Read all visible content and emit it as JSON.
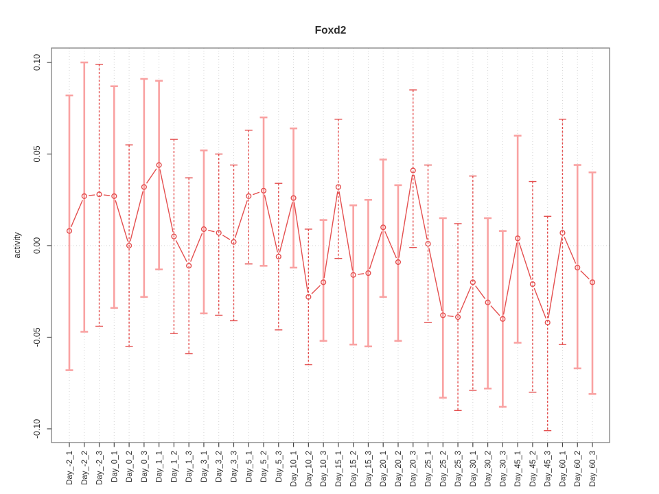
{
  "chart_data": {
    "type": "line",
    "subtype": "points-with-error-bars",
    "title": "Foxd2",
    "ylabel": "activity",
    "xlabel": "",
    "ylim": [
      -0.1078,
      0.1078
    ],
    "yticks": [
      "0.10",
      "0.05",
      "0.00",
      "-0.05",
      "-0.10"
    ],
    "ytick_values": [
      0.1,
      0.05,
      0.0,
      -0.05,
      -0.1
    ],
    "grid": "vertical dotted gridline per category, dotted horizontal line at y=0",
    "legend": "none",
    "categories": [
      "Day_-2_1",
      "Day_-2_2",
      "Day_-2_3",
      "Day_0_1",
      "Day_0_2",
      "Day_0_3",
      "Day_1_1",
      "Day_1_2",
      "Day_1_3",
      "Day_3_1",
      "Day_3_2",
      "Day_3_3",
      "Day_5_1",
      "Day_5_2",
      "Day_5_3",
      "Day_10_1",
      "Day_10_2",
      "Day_10_3",
      "Day_15_1",
      "Day_15_2",
      "Day_15_3",
      "Day_20_1",
      "Day_20_2",
      "Day_20_3",
      "Day_25_1",
      "Day_25_2",
      "Day_25_3",
      "Day_30_1",
      "Day_30_2",
      "Day_30_3",
      "Day_45_1",
      "Day_45_2",
      "Day_45_3",
      "Day_60_1",
      "Day_60_2",
      "Day_60_3"
    ],
    "series": [
      {
        "name": "activity",
        "values": [
          0.008,
          0.027,
          0.028,
          0.027,
          0.0,
          0.032,
          0.044,
          0.005,
          -0.011,
          0.009,
          0.007,
          0.002,
          0.027,
          0.03,
          -0.006,
          0.026,
          -0.028,
          -0.02,
          0.032,
          -0.016,
          -0.015,
          0.01,
          -0.009,
          0.041,
          0.001,
          -0.038,
          -0.039,
          -0.02,
          -0.031,
          -0.04,
          0.004,
          -0.021,
          -0.042,
          0.007,
          -0.012,
          -0.02
        ],
        "err_high": [
          0.082,
          0.1,
          0.099,
          0.087,
          0.055,
          0.091,
          0.09,
          0.058,
          0.037,
          0.052,
          0.05,
          0.044,
          0.063,
          0.07,
          0.034,
          0.064,
          0.009,
          0.014,
          0.069,
          0.022,
          0.025,
          0.047,
          0.033,
          0.085,
          0.044,
          0.015,
          0.012,
          0.038,
          0.015,
          0.008,
          0.06,
          0.035,
          0.016,
          0.069,
          0.044,
          0.04
        ],
        "err_low": [
          -0.068,
          -0.047,
          -0.044,
          -0.034,
          -0.055,
          -0.028,
          -0.013,
          -0.048,
          -0.059,
          -0.037,
          -0.038,
          -0.041,
          -0.01,
          -0.011,
          -0.046,
          -0.012,
          -0.065,
          -0.052,
          -0.007,
          -0.054,
          -0.055,
          -0.028,
          -0.052,
          -0.001,
          -0.042,
          -0.083,
          -0.09,
          -0.079,
          -0.078,
          -0.088,
          -0.053,
          -0.08,
          -0.101,
          -0.054,
          -0.067,
          -0.081
        ],
        "bar_styles": [
          "solid",
          "solid",
          "dashed",
          "solid",
          "dashed",
          "solid",
          "solid",
          "dashed",
          "dashed",
          "solid",
          "dashed",
          "dashed",
          "dashed",
          "solid",
          "dashed",
          "solid",
          "dashed",
          "solid",
          "dashed",
          "solid",
          "solid",
          "solid",
          "solid",
          "dashed",
          "dashed",
          "solid",
          "dashed",
          "dashed",
          "solid",
          "solid",
          "solid",
          "dashed",
          "dashed",
          "dashed",
          "solid",
          "solid"
        ]
      }
    ],
    "colors": {
      "point_and_line": "#e44f4f",
      "solid_error_bar": "#f9a2a2",
      "dashed_error_bar": "#e44f4f",
      "gridline": "#d2d2d2",
      "zero_line": "#d2d2d2",
      "plot_border": "#7f7f7f",
      "tick": "#444444",
      "text": "#2b2b2b",
      "background": "#ffffff"
    }
  }
}
